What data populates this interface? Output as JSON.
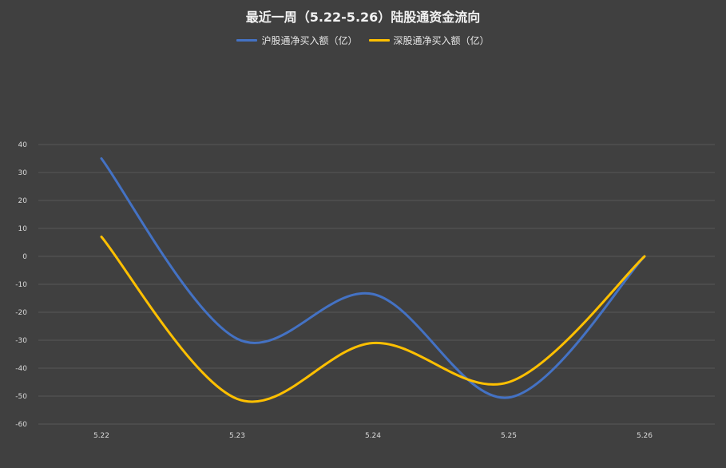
{
  "chart_data": {
    "type": "line",
    "title": "最近一周（5.22-5.26）陆股通资金流向",
    "categories": [
      "5.22",
      "5.23",
      "5.24",
      "5.25",
      "5.26"
    ],
    "series": [
      {
        "name": "沪股通净买入额（亿）",
        "color": "#4472c4",
        "values": [
          35,
          -29.5,
          -13.5,
          -50.5,
          0
        ]
      },
      {
        "name": "深股通净买入额（亿）",
        "color": "#ffc000",
        "values": [
          7,
          -51,
          -31,
          -45,
          0
        ]
      }
    ],
    "yticks": [
      "40",
      "30",
      "20",
      "10",
      "0",
      "-10",
      "-20",
      "-30",
      "-40",
      "-50",
      "-60"
    ],
    "ylim": [
      -60,
      40
    ],
    "grid": true,
    "smooth": true,
    "legend_position": "top"
  }
}
